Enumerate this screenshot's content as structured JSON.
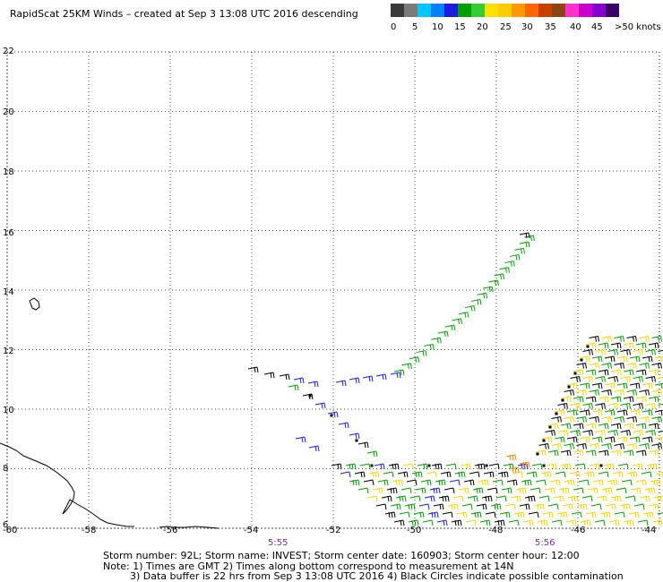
{
  "title": "RapidScat 25KM Winds – created at Sep  3 13:08 UTC 2016 descending",
  "colorbar": {
    "colors": [
      "#3a3a3a",
      "#7a7a7a",
      "#00c8ff",
      "#0080ff",
      "#1c1ce0",
      "#00a000",
      "#33cc33",
      "#ffe000",
      "#ffcc00",
      "#ff9900",
      "#ff6600",
      "#c84000",
      "#8b4513",
      "#ff33cc",
      "#cc00cc",
      "#8800cc",
      "#3a0066"
    ],
    "labels": [
      "0",
      "5",
      "10",
      "15",
      "20",
      "25",
      "30",
      "35",
      "40",
      "45",
      ">50 knots"
    ]
  },
  "y_ticks": [
    "22",
    "20",
    "18",
    "16",
    "14",
    "12",
    "10",
    "8",
    "6"
  ],
  "x_ticks": [
    "-60",
    "-58",
    "-56",
    "-54",
    "-52",
    "-50",
    "-48",
    "-46",
    "-44"
  ],
  "time_labels": [
    "5:55",
    "5:56"
  ],
  "notes": {
    "line1": "Storm number: 92L;  Storm name: INVEST;  Storm center date: 160903;  Storm center hour: 12:00",
    "line2": "Note: 1) Times are GMT  2) Times along bottom correspond to measurement at 14N",
    "line3": "3) Data buffer is 22 hrs from Sep  3 13:08 UTC 2016   4) Black Circles indicate possible contamination"
  },
  "chart_data": {
    "type": "map",
    "lon_range": [
      -60,
      -44
    ],
    "lat_range": [
      6,
      22
    ],
    "grid": true,
    "grid_style": "dotted",
    "barb_colors": {
      "black": "#000000",
      "blue": "#1c1ce0",
      "green": "#00a000",
      "yellow": "#ffd700",
      "orange": "#ff8800"
    }
  }
}
